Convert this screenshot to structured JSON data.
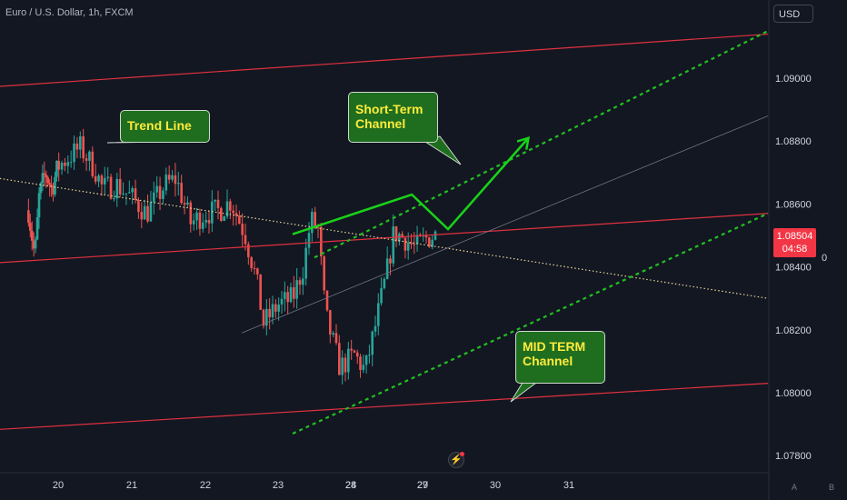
{
  "header": {
    "symbol": "Euro / U.S. Dollar, 1h, FXCM",
    "currency_button": "USD"
  },
  "price_tag": {
    "price": "1.08504",
    "countdown": "04:58",
    "color": "#f23645"
  },
  "scale_zero": "0",
  "scale_buttons": [
    "A",
    "B"
  ],
  "annotations": {
    "trend_line": "Trend Line",
    "short_term": [
      "Short-Term",
      "Channel"
    ],
    "mid_term": [
      "MID TERM",
      "Channel"
    ]
  },
  "colors": {
    "background": "#131722",
    "bull": "#26a69a",
    "bear": "#ef5350",
    "channel_red": "#e0313f",
    "dotted_green": "#21c021",
    "arrow": "#19d219",
    "trend_dotted": "#e6d69a",
    "callout_fill": "#1f6e1f",
    "callout_text": "#ffeb3b"
  },
  "chart_data": {
    "type": "candlestick",
    "title": "Euro / U.S. Dollar, 1h, FXCM",
    "y_ticks": [
      "1.09000",
      "1.08800",
      "1.08600",
      "1.08400",
      "1.08200",
      "1.08000",
      "1.07800"
    ],
    "x_ticks": [
      "20",
      "21",
      "22",
      "23",
      "24",
      "27",
      "28",
      "29",
      "30",
      "31"
    ],
    "ylim": [
      1.0774,
      1.0954
    ],
    "current_price": 1.08504,
    "close_path": [
      {
        "day": 19.3,
        "price": 1.0858
      },
      {
        "day": 19.45,
        "price": 1.0843
      },
      {
        "day": 19.55,
        "price": 1.0862
      },
      {
        "day": 19.7,
        "price": 1.087
      },
      {
        "day": 19.85,
        "price": 1.0865
      },
      {
        "day": 20.0,
        "price": 1.0872
      },
      {
        "day": 20.3,
        "price": 1.0878
      },
      {
        "day": 20.5,
        "price": 1.0871
      },
      {
        "day": 20.6,
        "price": 1.0865
      },
      {
        "day": 20.8,
        "price": 1.0866
      },
      {
        "day": 21.0,
        "price": 1.0862
      },
      {
        "day": 21.2,
        "price": 1.0857
      },
      {
        "day": 21.45,
        "price": 1.0866
      },
      {
        "day": 21.6,
        "price": 1.0868
      },
      {
        "day": 21.8,
        "price": 1.0854
      },
      {
        "day": 22.0,
        "price": 1.0857
      },
      {
        "day": 22.2,
        "price": 1.0858
      },
      {
        "day": 22.35,
        "price": 1.0861
      },
      {
        "day": 22.55,
        "price": 1.085
      },
      {
        "day": 22.7,
        "price": 1.0836
      },
      {
        "day": 22.8,
        "price": 1.0822
      },
      {
        "day": 23.0,
        "price": 1.0828
      },
      {
        "day": 23.2,
        "price": 1.083
      },
      {
        "day": 23.35,
        "price": 1.084
      },
      {
        "day": 23.45,
        "price": 1.0855
      },
      {
        "day": 23.55,
        "price": 1.0852
      },
      {
        "day": 23.65,
        "price": 1.0825
      },
      {
        "day": 23.85,
        "price": 1.0808
      },
      {
        "day": 24.05,
        "price": 1.0812
      },
      {
        "day": 24.2,
        "price": 1.0807
      },
      {
        "day": 24.35,
        "price": 1.0822
      },
      {
        "day": 24.5,
        "price": 1.0838
      },
      {
        "day": 24.6,
        "price": 1.0851
      },
      {
        "day": 24.75,
        "price": 1.0849
      },
      {
        "day": 24.9,
        "price": 1.0846
      },
      {
        "day": 25.05,
        "price": 1.0849
      },
      {
        "day": 25.2,
        "price": 1.08504
      }
    ],
    "lines": [
      {
        "name": "upper_red",
        "from": {
          "day": 18.2,
          "price": 1.0897
        },
        "to": {
          "day": 31.65,
          "price": 1.0914
        }
      },
      {
        "name": "middle_red",
        "from": {
          "day": 18.2,
          "price": 1.0841
        },
        "to": {
          "day": 31.65,
          "price": 1.0857
        }
      },
      {
        "name": "lower_red",
        "from": {
          "day": 18.2,
          "price": 1.0788
        },
        "to": {
          "day": 31.65,
          "price": 1.0803
        }
      },
      {
        "name": "trend_line",
        "from": {
          "day": 18.2,
          "price": 1.0869
        },
        "to": {
          "day": 31.65,
          "price": 1.083
        }
      },
      {
        "name": "short_term_upper",
        "from": {
          "day": 23.5,
          "price": 1.0843
        },
        "to": {
          "day": 31.65,
          "price": 1.0915
        }
      },
      {
        "name": "short_term_lower",
        "from": {
          "day": 22.5,
          "price": 1.0819
        },
        "to": {
          "day": 31.65,
          "price": 1.0888
        }
      },
      {
        "name": "mid_term_lower",
        "from": {
          "day": 23.2,
          "price": 1.0787
        },
        "to": {
          "day": 31.65,
          "price": 1.0857
        }
      }
    ],
    "projection": [
      {
        "day": 25.2,
        "price": 1.08504
      },
      {
        "day": 26.85,
        "price": 1.0863
      },
      {
        "day": 27.35,
        "price": 1.0852
      },
      {
        "day": 28.45,
        "price": 1.0881
      }
    ]
  }
}
